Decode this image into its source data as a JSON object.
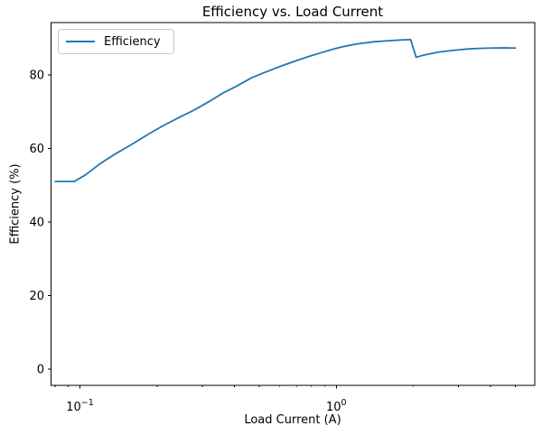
{
  "chart_data": {
    "type": "line",
    "title": "Efficiency vs. Load Current",
    "xlabel": "Load Current (A)",
    "ylabel": "Efficiency (%)",
    "xscale": "log",
    "xlim": [
      0.0771,
      5.95
    ],
    "ylim": [
      -4.42,
      94.23
    ],
    "grid": false,
    "legend": {
      "position": "upper left",
      "entries": [
        "Efficiency"
      ]
    },
    "axis_color": "#000000",
    "xticks_major": [
      {
        "value": 0.1,
        "label_base": "10",
        "label_exp": "−1"
      },
      {
        "value": 1,
        "label_base": "10",
        "label_exp": "0"
      }
    ],
    "xticks_minor": [
      0.08,
      0.09,
      0.2,
      0.3,
      0.4,
      0.5,
      0.6,
      0.7,
      0.8,
      0.9,
      2,
      3,
      4,
      5
    ],
    "yticks": [
      {
        "value": 0,
        "label": "0"
      },
      {
        "value": 20,
        "label": "20"
      },
      {
        "value": 40,
        "label": "40"
      },
      {
        "value": 60,
        "label": "60"
      },
      {
        "value": 80,
        "label": "80"
      }
    ],
    "series": [
      {
        "name": "Efficiency",
        "color": "#1f77b4",
        "x": [
          0.08,
          0.095,
          0.105,
          0.12,
          0.135,
          0.16,
          0.185,
          0.21,
          0.245,
          0.28,
          0.32,
          0.36,
          0.41,
          0.47,
          0.54,
          0.62,
          0.7,
          0.78,
          0.86,
          0.95,
          1.05,
          1.2,
          1.4,
          1.6,
          1.8,
          1.95,
          2.05,
          2.2,
          2.5,
          2.8,
          3.2,
          3.6,
          4.0,
          4.5,
          5.0
        ],
        "y": [
          51.0,
          51.0,
          52.8,
          55.9,
          58.2,
          61.2,
          63.9,
          66.1,
          68.5,
          70.5,
          72.8,
          75.0,
          77.0,
          79.3,
          81.0,
          82.6,
          83.9,
          85.0,
          85.9,
          86.8,
          87.6,
          88.4,
          89.0,
          89.3,
          89.5,
          89.6,
          84.8,
          85.4,
          86.2,
          86.6,
          87.0,
          87.2,
          87.3,
          87.35,
          87.3
        ]
      }
    ]
  }
}
